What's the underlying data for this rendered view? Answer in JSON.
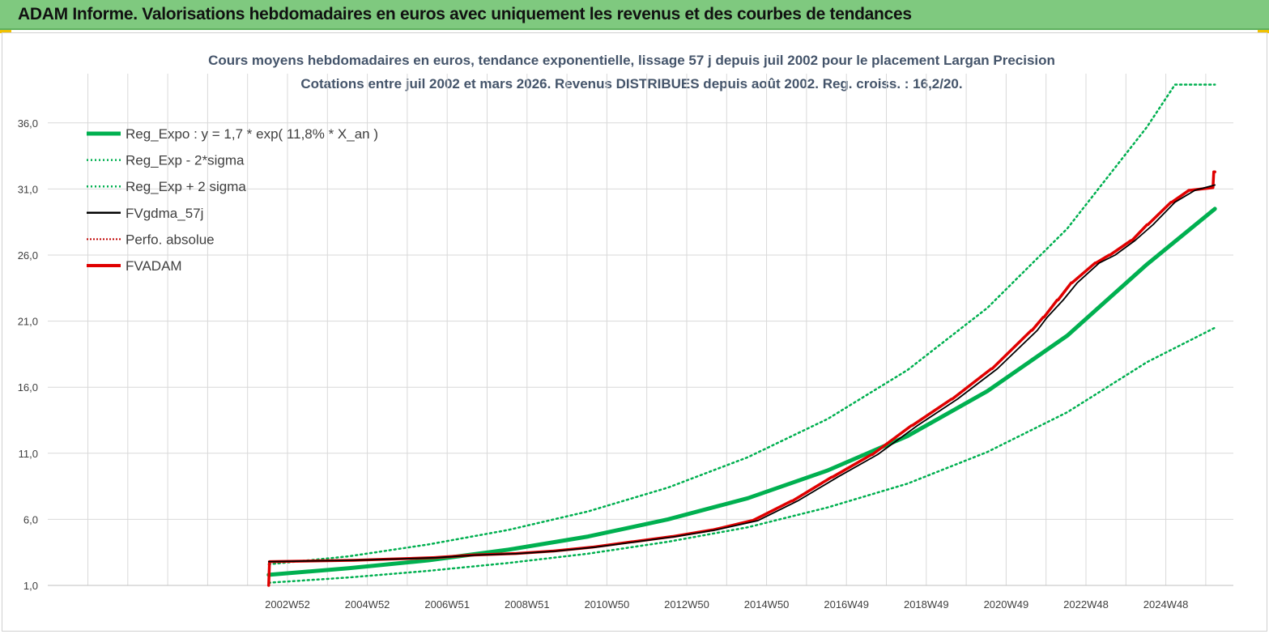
{
  "header": {
    "title": "ADAM Informe. Valorisations hebdomadaires en euros avec uniquement les revenus et des courbes de tendances"
  },
  "colors": {
    "header_bg": "#7fc97f",
    "reg_expo": "#00b050",
    "fvgdma": "#000000",
    "fvadam": "#e00000",
    "perfo": "#c00000",
    "accent_corner": "#f2c200"
  },
  "chart_data": {
    "type": "line",
    "title": "Cours moyens hebdomadaires en euros, tendance exponentielle, lissage 57 j depuis juil 2002 pour le placement Largan Precision",
    "subtitle": "Cotations entre juil 2002 et mars 2026. Revenus DISTRIBUES depuis août 2002. Reg. croiss. : 16,2/20.",
    "y_ticks": [
      "1,0",
      "6,0",
      "11,0",
      "16,0",
      "21,0",
      "26,0",
      "31,0",
      "36,0"
    ],
    "ylim": [
      1,
      38.9
    ],
    "x_ticks": [
      "2002W52",
      "2004W52",
      "2006W51",
      "2008W51",
      "2010W50",
      "2012W50",
      "2014W50",
      "2016W49",
      "2018W49",
      "2020W49",
      "2022W48",
      "2024W48"
    ],
    "x_tick_years": [
      2002.97,
      2004.97,
      2006.97,
      2008.97,
      2010.97,
      2012.97,
      2014.97,
      2016.97,
      2018.97,
      2020.97,
      2022.97,
      2024.97
    ],
    "x_start": 2002.5,
    "x_end": 2026.2,
    "grid": "horizontal and vertical",
    "legend_position": "top-left",
    "legend": [
      {
        "label": "Reg_Expo : y = 1,7 * exp( 11,8% *  X_an )",
        "style": "solid-thick",
        "color": "#00b050"
      },
      {
        "label": "Reg_Exp - 2*sigma",
        "style": "dotted",
        "color": "#00b050"
      },
      {
        "label": "Reg_Exp + 2 sigma",
        "style": "dotted",
        "color": "#00b050"
      },
      {
        "label": "FVgdma_57j",
        "style": "solid",
        "color": "#000000"
      },
      {
        "label": "Perfo. absolue",
        "style": "dotted",
        "color": "#c00000"
      },
      {
        "label": "FVADAM",
        "style": "solid-thick",
        "color": "#e00000"
      }
    ],
    "series": [
      {
        "name": "Reg_Expo : y = 1,7 * exp( 11,8% *  X_an )",
        "x": [
          2002.5,
          2004.5,
          2006.5,
          2008.5,
          2010.5,
          2012.5,
          2014.5,
          2016.5,
          2018.5,
          2020.5,
          2022.5,
          2024.5,
          2026.2
        ],
        "values": [
          1.8,
          2.3,
          2.9,
          3.7,
          4.7,
          6.0,
          7.6,
          9.7,
          12.3,
          15.7,
          19.9,
          25.3,
          29.5
        ]
      },
      {
        "name": "Reg_Exp - 2*sigma",
        "x": [
          2002.5,
          2004.5,
          2006.5,
          2008.5,
          2010.5,
          2012.5,
          2014.5,
          2016.5,
          2018.5,
          2020.5,
          2022.5,
          2024.5,
          2026.2
        ],
        "values": [
          1.2,
          1.6,
          2.1,
          2.7,
          3.4,
          4.3,
          5.4,
          6.9,
          8.7,
          11.1,
          14.1,
          17.9,
          20.5
        ]
      },
      {
        "name": "Reg_Exp + 2 sigma",
        "x": [
          2002.5,
          2004.5,
          2006.5,
          2008.5,
          2010.5,
          2012.5,
          2014.5,
          2016.5,
          2018.5,
          2020.5,
          2022.5,
          2024.5,
          2025.2,
          2026.2
        ],
        "values": [
          2.6,
          3.2,
          4.1,
          5.2,
          6.6,
          8.4,
          10.7,
          13.6,
          17.3,
          22.0,
          28.0,
          35.7,
          38.9,
          38.9
        ]
      },
      {
        "name": "FVADAM",
        "x": [
          2002.5,
          2002.52,
          2004.6,
          2004.62,
          2005.6,
          2005.62,
          2006.6,
          2006.62,
          2007.6,
          2007.62,
          2008.6,
          2008.62,
          2009.6,
          2009.62,
          2010.6,
          2010.62,
          2011.6,
          2011.62,
          2012.6,
          2012.62,
          2013.6,
          2013.62,
          2014.6,
          2014.62,
          2015.6,
          2015.62,
          2016.6,
          2016.62,
          2017.6,
          2017.62,
          2018.6,
          2018.62,
          2019.6,
          2019.62,
          2020.6,
          2020.62,
          2021.6,
          2021.62,
          2021.9,
          2021.92,
          2022.25,
          2022.27,
          2022.6,
          2022.62,
          2023.2,
          2023.22,
          2023.55,
          2023.57,
          2024.1,
          2024.12,
          2024.5,
          2024.52,
          2025.1,
          2025.12,
          2025.55,
          2025.57,
          2026.15,
          2026.17,
          2026.2
        ],
        "values": [
          1.0,
          2.8,
          2.9,
          2.9,
          3.0,
          3.0,
          3.1,
          3.1,
          3.3,
          3.3,
          3.4,
          3.4,
          3.6,
          3.6,
          3.9,
          3.9,
          4.3,
          4.3,
          4.7,
          4.7,
          5.2,
          5.2,
          5.9,
          5.9,
          7.4,
          7.4,
          9.2,
          9.2,
          10.9,
          10.9,
          13.1,
          13.1,
          15.1,
          15.1,
          17.4,
          17.4,
          20.3,
          20.3,
          21.3,
          21.3,
          22.6,
          22.6,
          23.9,
          23.9,
          25.4,
          25.4,
          26.0,
          26.0,
          27.1,
          27.1,
          28.3,
          28.3,
          30.0,
          30.0,
          30.9,
          30.9,
          31.1,
          32.3,
          32.3
        ]
      },
      {
        "name": "FVgdma_57j",
        "x": [
          2002.5,
          2004.6,
          2005.7,
          2006.7,
          2007.7,
          2008.7,
          2009.7,
          2010.7,
          2011.7,
          2012.7,
          2013.7,
          2014.75,
          2015.75,
          2016.75,
          2017.75,
          2018.75,
          2019.75,
          2020.75,
          2021.75,
          2022.0,
          2022.4,
          2022.75,
          2023.3,
          2023.7,
          2024.2,
          2024.65,
          2025.2,
          2025.7,
          2026.2
        ],
        "values": [
          2.8,
          2.9,
          3.0,
          3.1,
          3.3,
          3.4,
          3.6,
          3.9,
          4.3,
          4.7,
          5.2,
          5.9,
          7.4,
          9.2,
          10.9,
          13.1,
          15.1,
          17.4,
          20.3,
          21.3,
          22.6,
          23.9,
          25.4,
          26.0,
          27.1,
          28.3,
          30.0,
          30.9,
          31.3
        ]
      }
    ]
  }
}
